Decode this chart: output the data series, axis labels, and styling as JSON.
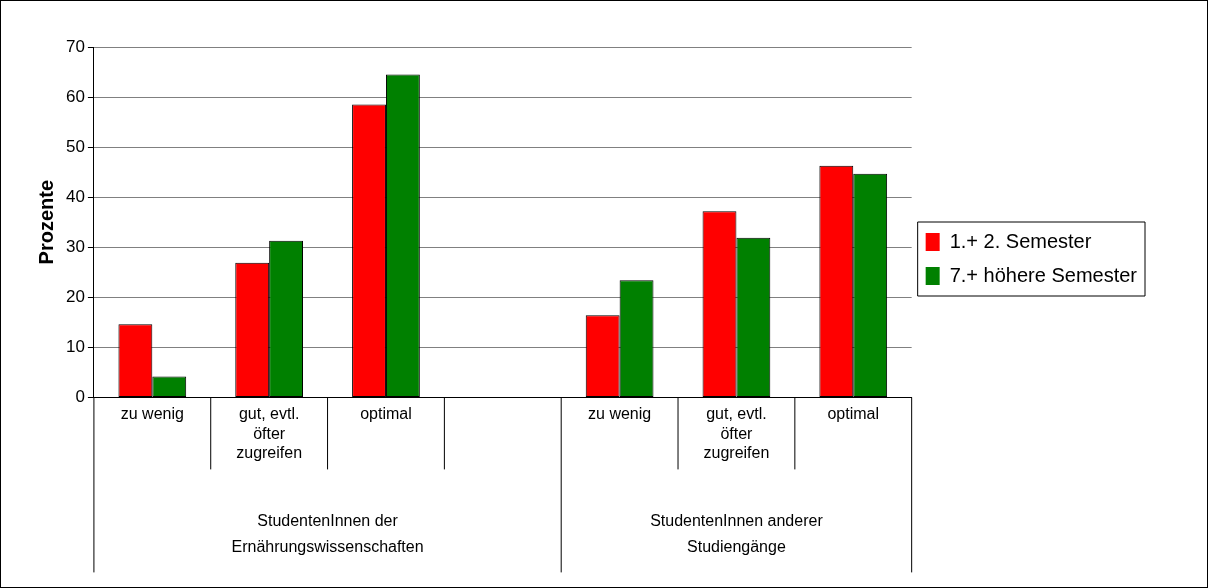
{
  "chart_data": {
    "type": "bar",
    "ylabel": "Prozente",
    "categories": [
      "zu wenig",
      "gut, evtl. öfter zugreifen",
      "optimal",
      null,
      "zu wenig",
      "gut, evtl. öfter zugreifen",
      "optimal"
    ],
    "series": [
      {
        "name": "1.+ 2. Semester",
        "color": "#ff0000",
        "values": [
          14.6,
          26.9,
          58.5,
          null,
          16.4,
          37.2,
          46.3
        ]
      },
      {
        "name": "7.+ höhere Semester",
        "color": "#008000",
        "values": [
          4.2,
          31.3,
          64.5,
          null,
          23.4,
          31.9,
          44.7
        ]
      }
    ],
    "annotations": [
      "StudentenInnen der Ernährungswissenschaften",
      "StudentenInnen anderer Studiengänge"
    ],
    "ylim": [
      0,
      70
    ],
    "yticks": [
      0,
      10,
      20,
      30,
      40,
      50,
      60,
      70
    ],
    "grid": "y",
    "legend": "right"
  }
}
